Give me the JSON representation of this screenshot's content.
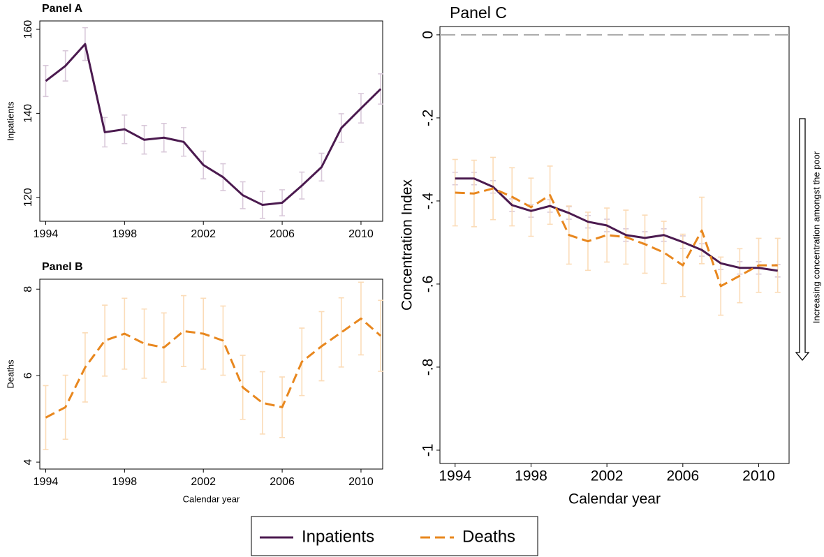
{
  "chart_data": [
    {
      "type": "line",
      "title": "Panel A",
      "ylabel": "Inpatients",
      "x": [
        1994,
        1995,
        1996,
        1997,
        1998,
        1999,
        2000,
        2001,
        2002,
        2003,
        2004,
        2005,
        2006,
        2007,
        2008,
        2009,
        2010,
        2011
      ],
      "series": [
        {
          "color": "#4b1a4f",
          "error_color": "#d9c9da",
          "line_style": "solid",
          "values": [
            147.7,
            151.3,
            156.5,
            135.5,
            136.2,
            133.7,
            134.2,
            133.2,
            127.7,
            124.8,
            120.5,
            118.2,
            118.7,
            122.8,
            127.2,
            136.5,
            141.2,
            145.8
          ],
          "errors": [
            3.7,
            3.6,
            3.9,
            3.5,
            3.4,
            3.4,
            3.4,
            3.4,
            3.3,
            3.2,
            3.2,
            3.2,
            3.1,
            3.2,
            3.3,
            3.4,
            3.5,
            3.6
          ]
        }
      ],
      "xlim": [
        1993.7,
        2011.1
      ],
      "xticks": [
        1994,
        1998,
        2002,
        2006,
        2010
      ],
      "ylim": [
        114.3,
        162
      ],
      "yticks": [
        120,
        140,
        160
      ]
    },
    {
      "type": "line",
      "title": "Panel B",
      "ylabel": "Deaths",
      "xlabel": "Calendar year",
      "x": [
        1994,
        1995,
        1996,
        1997,
        1998,
        1999,
        2000,
        2001,
        2002,
        2003,
        2004,
        2005,
        2006,
        2007,
        2008,
        2009,
        2010,
        2011
      ],
      "series": [
        {
          "color": "#e8871e",
          "error_color": "#fbdcb8",
          "line_style": "dashed",
          "values": [
            5.03,
            5.27,
            6.19,
            6.81,
            6.97,
            6.74,
            6.65,
            7.03,
            6.97,
            6.81,
            5.73,
            5.37,
            5.27,
            6.32,
            6.68,
            7.0,
            7.32,
            6.92
          ],
          "errors": [
            0.74,
            0.74,
            0.8,
            0.82,
            0.82,
            0.8,
            0.8,
            0.82,
            0.82,
            0.8,
            0.74,
            0.72,
            0.7,
            0.78,
            0.8,
            0.8,
            0.84,
            0.82
          ]
        }
      ],
      "xlim": [
        1993.7,
        2011.1
      ],
      "xticks": [
        1994,
        1998,
        2002,
        2006,
        2010
      ],
      "ylim": [
        3.84,
        8.23
      ],
      "yticks": [
        4,
        6,
        8
      ]
    },
    {
      "type": "line",
      "title": "Panel C",
      "ylabel": "Concentration Index",
      "xlabel": "Calendar year",
      "annotation": "Increasing concentration amongst the poor",
      "hline": 0,
      "x": [
        1994,
        1995,
        1996,
        1997,
        1998,
        1999,
        2000,
        2001,
        2002,
        2003,
        2004,
        2005,
        2006,
        2007,
        2008,
        2009,
        2010,
        2011
      ],
      "series": [
        {
          "name": "Inpatients",
          "color": "#4b1a4f",
          "error_color": "#d9c9da",
          "line_style": "solid",
          "values": [
            -0.346,
            -0.346,
            -0.366,
            -0.41,
            -0.424,
            -0.412,
            -0.429,
            -0.45,
            -0.459,
            -0.482,
            -0.489,
            -0.482,
            -0.499,
            -0.518,
            -0.55,
            -0.561,
            -0.561,
            -0.568
          ],
          "errors": [
            0.015,
            0.015,
            0.015,
            0.015,
            0.015,
            0.015,
            0.015,
            0.015,
            0.015,
            0.015,
            0.015,
            0.015,
            0.015,
            0.015,
            0.015,
            0.015,
            0.015,
            0.015
          ]
        },
        {
          "name": "Deaths",
          "color": "#e8871e",
          "error_color": "#fbdcb8",
          "line_style": "dashed",
          "values": [
            -0.38,
            -0.382,
            -0.37,
            -0.39,
            -0.415,
            -0.386,
            -0.482,
            -0.497,
            -0.482,
            -0.487,
            -0.504,
            -0.524,
            -0.555,
            -0.471,
            -0.605,
            -0.58,
            -0.555,
            -0.555
          ],
          "errors": [
            0.08,
            0.08,
            0.075,
            0.07,
            0.07,
            0.07,
            0.07,
            0.07,
            0.065,
            0.065,
            0.07,
            0.075,
            0.075,
            0.08,
            0.07,
            0.065,
            0.065,
            0.065
          ]
        }
      ],
      "xlim": [
        1993.2,
        2011.6
      ],
      "xticks": [
        1994,
        1998,
        2002,
        2006,
        2010
      ],
      "ylim": [
        -1.032,
        0.02
      ],
      "yticks": [
        0,
        {
          "value": -0.2,
          "label": "-.2"
        },
        {
          "value": -0.4,
          "label": "-.4"
        },
        {
          "value": -0.6,
          "label": "-.6"
        },
        {
          "value": -0.8,
          "label": "-.8"
        },
        -1
      ]
    }
  ]
}
